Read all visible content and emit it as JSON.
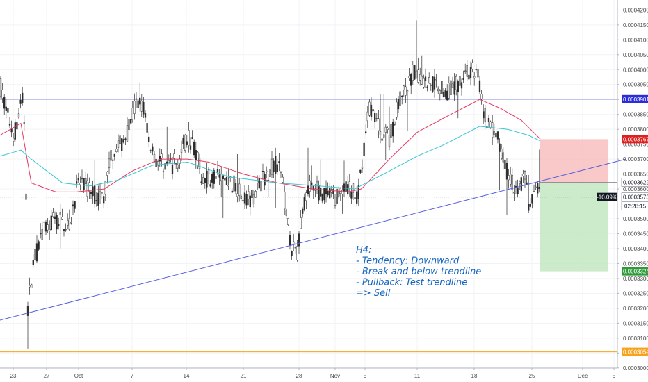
{
  "chart_data": {
    "type": "candlestick",
    "timeframe": "H4",
    "ylim": [
      0.00029995,
      0.00042125
    ],
    "y_ticks": [
      "0.0004200",
      "0.0004150",
      "0.0004100",
      "0.0004050",
      "0.0004000",
      "0.0003950",
      "0.0003900",
      "0.0003850",
      "0.0003800",
      "0.0003750",
      "0.0003700",
      "0.0003650",
      "0.0003600",
      "0.0003550",
      "0.0003500",
      "0.0003450",
      "0.0003400",
      "0.0003350",
      "0.0003300",
      "0.0003250",
      "0.0003200",
      "0.0003150",
      "0.0003100",
      "0.0003050",
      "0.0003000"
    ],
    "x_ticks": [
      "23",
      "27",
      "Oct",
      "7",
      "14",
      "21",
      "28",
      "Nov",
      "5",
      "11",
      "18",
      "25",
      "Dec",
      "5"
    ],
    "price_path_anchors": [
      [
        0,
        0.000395
      ],
      [
        8,
        0.000387
      ],
      [
        20,
        0.000378
      ],
      [
        32,
        0.00039
      ],
      [
        36,
        0.00038
      ],
      [
        40,
        0.00032
      ],
      [
        48,
        0.000335
      ],
      [
        60,
        0.000345
      ],
      [
        80,
        0.00035
      ],
      [
        100,
        0.000348
      ],
      [
        112,
        0.000362
      ],
      [
        125,
        0.00036
      ],
      [
        140,
        0.000358
      ],
      [
        150,
        0.000357
      ],
      [
        160,
        0.000372
      ],
      [
        175,
        0.000375
      ],
      [
        185,
        0.00038
      ],
      [
        195,
        0.000388
      ],
      [
        205,
        0.000389
      ],
      [
        215,
        0.000376
      ],
      [
        225,
        0.00037
      ],
      [
        240,
        0.000368
      ],
      [
        255,
        0.000369
      ],
      [
        270,
        0.000378
      ],
      [
        280,
        0.000374
      ],
      [
        290,
        0.000364
      ],
      [
        310,
        0.000364
      ],
      [
        330,
        0.000362
      ],
      [
        345,
        0.00036
      ],
      [
        355,
        0.000357
      ],
      [
        365,
        0.000358
      ],
      [
        380,
        0.000364
      ],
      [
        395,
        0.000369
      ],
      [
        405,
        0.000365
      ],
      [
        412,
        0.00035
      ],
      [
        420,
        0.00034
      ],
      [
        428,
        0.000338
      ],
      [
        435,
        0.000355
      ],
      [
        445,
        0.00036
      ],
      [
        460,
        0.000359
      ],
      [
        480,
        0.000357
      ],
      [
        500,
        0.00036
      ],
      [
        515,
        0.000357
      ],
      [
        522,
        0.000372
      ],
      [
        532,
        0.000388
      ],
      [
        545,
        0.000381
      ],
      [
        560,
        0.000376
      ],
      [
        572,
        0.000388
      ],
      [
        585,
        0.000393
      ],
      [
        595,
        0.000399
      ],
      [
        610,
        0.000396
      ],
      [
        625,
        0.000396
      ],
      [
        640,
        0.000393
      ],
      [
        655,
        0.000394
      ],
      [
        670,
        0.000399
      ],
      [
        688,
        0.000399
      ],
      [
        693,
        0.000388
      ],
      [
        705,
        0.00038
      ],
      [
        718,
        0.000376
      ],
      [
        728,
        0.000367
      ],
      [
        742,
        0.00036
      ],
      [
        755,
        0.000364
      ],
      [
        763,
        0.000352
      ],
      [
        770,
        0.000362
      ],
      [
        778,
        0.0003573
      ]
    ],
    "ma_red_anchors": [
      [
        0,
        0.000378
      ],
      [
        30,
        0.000382
      ],
      [
        45,
        0.000362
      ],
      [
        80,
        0.000359
      ],
      [
        110,
        0.000359
      ],
      [
        150,
        0.00036
      ],
      [
        190,
        0.000366
      ],
      [
        230,
        0.00037
      ],
      [
        270,
        0.00037
      ],
      [
        300,
        0.000369
      ],
      [
        350,
        0.000365
      ],
      [
        400,
        0.000362
      ],
      [
        450,
        0.00036
      ],
      [
        500,
        0.000359
      ],
      [
        520,
        0.00036
      ],
      [
        560,
        0.00037
      ],
      [
        600,
        0.000379
      ],
      [
        640,
        0.000384
      ],
      [
        690,
        0.00039
      ],
      [
        720,
        0.000387
      ],
      [
        750,
        0.000383
      ],
      [
        778,
        0.0003765
      ]
    ],
    "ma_cyan_anchors": [
      [
        0,
        0.000371
      ],
      [
        30,
        0.000373
      ],
      [
        45,
        0.00037
      ],
      [
        90,
        0.000362
      ],
      [
        130,
        0.000361
      ],
      [
        170,
        0.000363
      ],
      [
        220,
        0.000368
      ],
      [
        270,
        0.000369
      ],
      [
        330,
        0.000364
      ],
      [
        400,
        0.000362
      ],
      [
        460,
        0.000361
      ],
      [
        510,
        0.00036
      ],
      [
        560,
        0.000366
      ],
      [
        600,
        0.000371
      ],
      [
        640,
        0.000375
      ],
      [
        690,
        0.000381
      ],
      [
        730,
        0.00038
      ],
      [
        760,
        0.000378
      ],
      [
        778,
        0.000376
      ]
    ],
    "horizontal_levels": [
      {
        "value": 0.0003901,
        "label": "0.0003901",
        "color": "#2b2ed8"
      },
      {
        "value": 0.0003054,
        "label": "0.0003054",
        "color": "#f7a21b"
      }
    ],
    "current_price": {
      "value": 0.0003573,
      "label": "0.0003573",
      "change": "-10.09%",
      "countdown": "02:28:15"
    },
    "position": {
      "entry": 0.0003622,
      "entry_label": "0.0003622",
      "stop": 0.0003767,
      "stop_label": "0.0003767",
      "target": 0.0003324,
      "target_label": "0.0003324"
    },
    "trendline": {
      "from": [
        0,
        0.000316
      ],
      "to": [
        900,
        0.00037
      ],
      "color": "#5560e0"
    },
    "annotation": [
      "H4:",
      "- Tendency: Downward",
      "- Break and below trendline",
      "- Pullback: Test trendline",
      "=> Sell"
    ]
  }
}
